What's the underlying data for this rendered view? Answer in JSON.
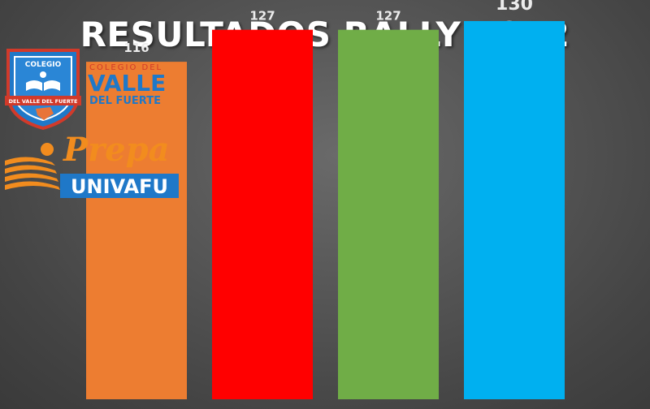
{
  "chart_data": {
    "type": "bar",
    "title": "RESULTADOS RALLY 2022",
    "categories": [
      "",
      "",
      "",
      ""
    ],
    "values": [
      116,
      127,
      127,
      130
    ],
    "data_labels": [
      "116",
      "127",
      "127",
      "130"
    ],
    "colors": [
      "#ED7D31",
      "#FF0000",
      "#70AD47",
      "#00B0F0"
    ],
    "highlight_index": 3,
    "ylim": [
      0,
      135
    ],
    "grid": false,
    "legend": "none"
  },
  "logos": {
    "school": {
      "shield_text": "COLEGIO",
      "ribbon_text": "DEL VALLE DEL FUERTE",
      "name_line1": "COLEGIO DEL",
      "name_line2": "VALLE",
      "name_line3": "DEL FUERTE",
      "primary_color": "#1f78c8",
      "accent_color": "#d23a2a"
    },
    "prepa": {
      "script_text": "Prepa",
      "box_text": "UNIVAFU",
      "orange": "#f28c1e",
      "blue": "#1f78c8"
    }
  }
}
